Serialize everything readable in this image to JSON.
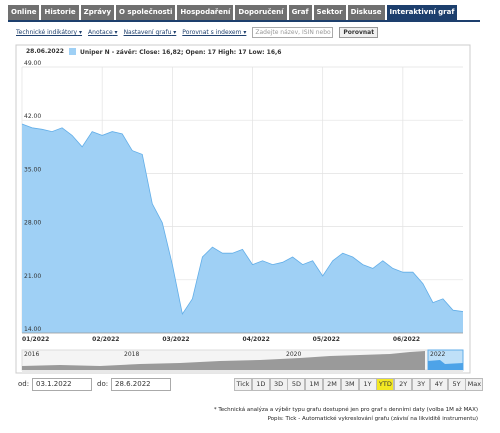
{
  "tabs": {
    "items": [
      "Online",
      "Historie",
      "Zprávy",
      "O společnosti",
      "Hospodaření",
      "Doporučení",
      "Graf",
      "Sektor",
      "Diskuse",
      "Interaktivní graf"
    ],
    "selected": "Interaktivní graf"
  },
  "toolbar": {
    "menus": [
      "Technické indikátory",
      "Anotace",
      "Nastavení grafu",
      "Porovnat s indexem"
    ],
    "search_placeholder": "Zadejte název, ISIN nebo",
    "compare_button": "Porovnat"
  },
  "chart_data": {
    "type": "area",
    "date": "28.06.2022",
    "legend": "Uniper N - závěr: Close: 16,82; Open: 17 High: 17 Low: 16,6",
    "categories": [
      "01/2022",
      null,
      null,
      null,
      null,
      null,
      null,
      null,
      "02/2022",
      null,
      null,
      null,
      null,
      null,
      null,
      "03/2022",
      null,
      null,
      null,
      null,
      null,
      null,
      null,
      "04/2022",
      null,
      null,
      null,
      null,
      null,
      null,
      "05/2022",
      null,
      null,
      null,
      null,
      null,
      null,
      null,
      "06/2022",
      null,
      null,
      null,
      null,
      null,
      null
    ],
    "series": [
      {
        "name": "Uniper N",
        "color": "#9fd0f5",
        "line_color": "#62aee8",
        "values": [
          41.5,
          41,
          40.8,
          40.5,
          41,
          40,
          38.5,
          40.5,
          40,
          40.5,
          40.2,
          38,
          37.5,
          31,
          28.5,
          23,
          16.5,
          18.5,
          24,
          25.3,
          24.5,
          24.5,
          25,
          23,
          23.5,
          23,
          23.3,
          24,
          23,
          23.5,
          21.5,
          23.5,
          24.5,
          24,
          23,
          22.5,
          23.5,
          22.5,
          22,
          22,
          20.5,
          18,
          18.5,
          17,
          16.82
        ]
      }
    ],
    "ylim": [
      14,
      49
    ],
    "yticks": [
      {
        "value": 14,
        "label": "14.00"
      },
      {
        "value": 21,
        "label": "21.00"
      },
      {
        "value": 28,
        "label": "28.00"
      },
      {
        "value": 35,
        "label": "35.00"
      },
      {
        "value": 42,
        "label": "42.00"
      },
      {
        "value": 49,
        "label": "49.00"
      }
    ],
    "grid": true
  },
  "navigator": {
    "years": [
      "2016",
      "2018",
      "2020",
      "2022"
    ]
  },
  "range": {
    "from_label": "od:",
    "from": "03.1.2022",
    "to_label": "do:",
    "to": "28.6.2022",
    "buttons": [
      "Tick",
      "1D",
      "3D",
      "5D",
      "1M",
      "2M",
      "3M",
      "1Y",
      "YTD",
      "2Y",
      "3Y",
      "4Y",
      "5Y",
      "Max"
    ],
    "selected": "YTD"
  },
  "footnotes": [
    "* Technická analýza a výběr typu grafu dostupné jen pro graf s denními daty (volba 1M až MAX)",
    "Popis: Tick - Automatické vykreslování grafu (závisí na likviditě instrumentu)"
  ]
}
